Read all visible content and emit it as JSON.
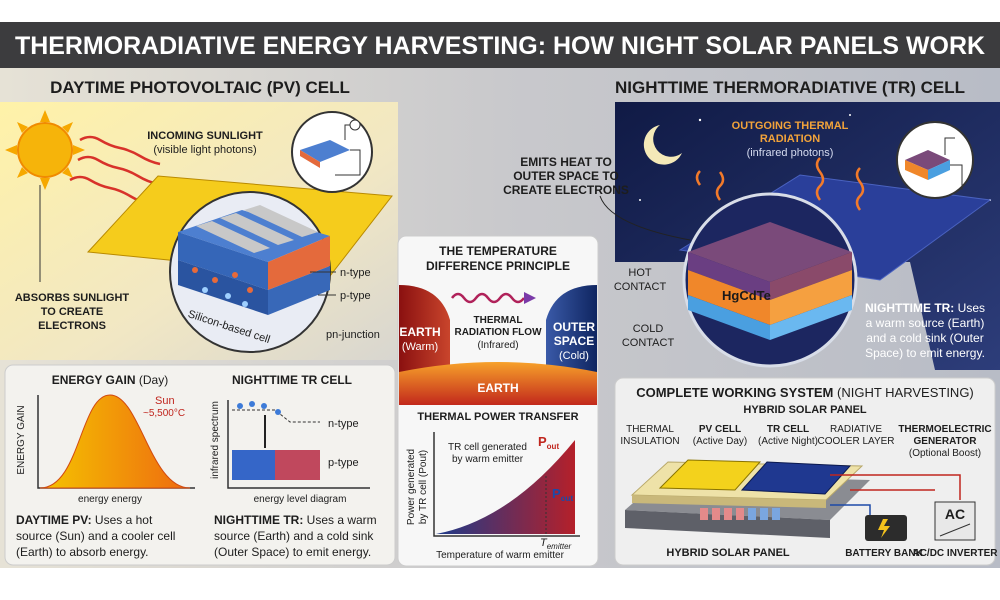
{
  "header": {
    "title": "THERMORADIATIVE ENERGY HARVESTING: HOW NIGHT SOLAR PANELS WORK"
  },
  "daytime": {
    "heading": "DAYTIME PHOTOVOLTAIC (PV) CELL",
    "incoming": "INCOMING SUNLIGHT",
    "incoming_note": "(visible light photons)",
    "absorbs": [
      "ABSORBS SUNLIGHT",
      "TO CREATE",
      "ELECTRONS"
    ],
    "n_type": "n-type",
    "p_type": "p-type",
    "junction": "pn-junction",
    "cell": "Silicon-based cell"
  },
  "energy_gain": {
    "title": "ENERGY GAIN",
    "title_note": "(Day)",
    "y_label": "ENERGY GAIN",
    "sun": "Sun",
    "sun_temp": "~5,500°C",
    "x_label": "energy energy"
  },
  "tr_diagram": {
    "title": "NIGHTTIME TR CELL",
    "y_label": "infrared spectrum",
    "n_type": "n-type",
    "p_type": "p-type",
    "x_label": "energy level diagram"
  },
  "pv_caption": {
    "lead": "DAYTIME PV:",
    "lines": [
      " Uses a hot",
      "source (Sun) and a cooler cell",
      "(Earth) to absorb energy."
    ]
  },
  "tr_caption": {
    "lead": "NIGHTTIME TR:",
    "lines": [
      " Uses a warm",
      "source (Earth) and a cold sink",
      "(Outer Space) to emit energy."
    ]
  },
  "principle": {
    "title": [
      "THE TEMPERATURE",
      "DIFFERENCE PRINCIPLE"
    ],
    "earth": "EARTH",
    "earth_note": "(Warm)",
    "flow": [
      "THERMAL",
      "RADIATION FLOW"
    ],
    "flow_note": "(Infrared)",
    "space": [
      "OUTER",
      "SPACE"
    ],
    "space_note": "(Cold)",
    "ground": "EARTH"
  },
  "power": {
    "title": "THERMAL POWER TRANSFER",
    "note": [
      "TR cell generated",
      "by warm emitter"
    ],
    "p_out_top": {
      "main": "P",
      "sub": "out"
    },
    "p_out_mid": {
      "main": "P",
      "sub": "out"
    },
    "t_emitter": {
      "main": "T",
      "sub": "emitter"
    },
    "y_label": [
      "Power generated",
      "by TR cell (Pout)"
    ],
    "x_label": "Temperature of warm emitter"
  },
  "nighttime": {
    "heading": "NIGHTTIME THERMORADIATIVE (TR) CELL",
    "outgoing": [
      "OUTGOING THERMAL",
      "RADIATION"
    ],
    "outgoing_note": "(infrared photons)",
    "emits": [
      "EMITS HEAT TO",
      "OUTER SPACE TO",
      "CREATE ELECTRONS"
    ],
    "hot": [
      "HOT",
      "CONTACT"
    ],
    "material": "HgCdTe",
    "cold": [
      "COLD",
      "CONTACT"
    ],
    "caption": {
      "lead": "NIGHTTIME TR:",
      "lines": [
        " Uses",
        "a warm source (Earth)",
        "and a cold sink (Outer",
        "Space) to emit energy."
      ]
    }
  },
  "system": {
    "title": "COMPLETE WORKING SYSTEM",
    "title_note": " (NIGHT HARVESTING)",
    "subtitle": "HYBRID SOLAR PANEL",
    "insulation": [
      "THERMAL",
      "INSULATION"
    ],
    "pv": "PV CELL",
    "pv_note": "(Active Day)",
    "tr": "TR CELL",
    "tr_note": "(Active Night)",
    "cooler": [
      "RADIATIVE",
      "COOLER LAYER"
    ],
    "teg": [
      "THERMOELECTRIC",
      "GENERATOR"
    ],
    "teg_note": "(Optional Boost)",
    "ac": "AC",
    "panel_label": "HYBRID SOLAR PANEL",
    "battery": "BATTERY BANK",
    "inverter": "AC/DC INVERTER"
  }
}
